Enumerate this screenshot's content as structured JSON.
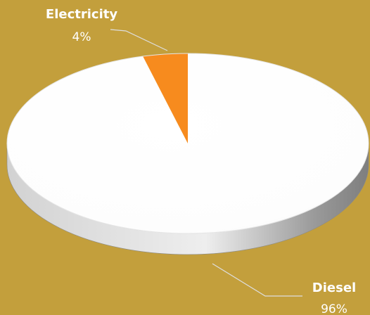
{
  "chart_data": {
    "type": "pie",
    "style": "3d",
    "slices": [
      {
        "label": "Electricity",
        "value_label": "4%",
        "value": 4,
        "color": "#F78B1E"
      },
      {
        "label": "Diesel",
        "value_label": "96%",
        "value": 96,
        "color": "#FFFFFF"
      }
    ],
    "background_color": "#C39F3C",
    "leader_line_color": "#DEDEDE",
    "legend": "none",
    "label_placement": "outside with leader lines"
  }
}
